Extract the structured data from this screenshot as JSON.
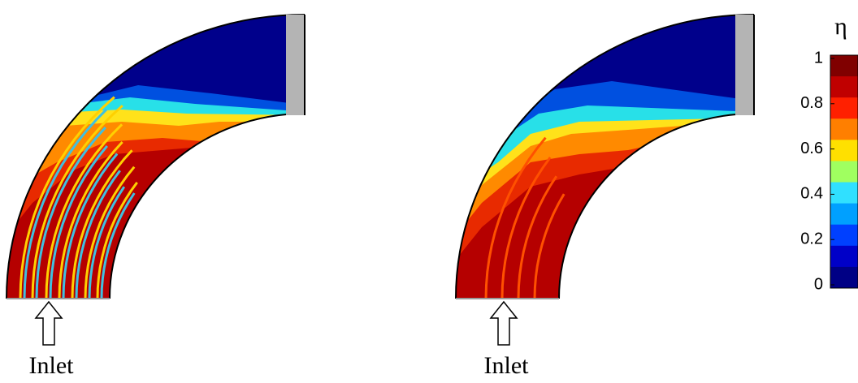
{
  "colorbar": {
    "title": "η",
    "ticks": [
      0,
      0.2,
      0.4,
      0.6,
      0.8,
      1
    ]
  },
  "panels": [
    {
      "label": "Inlet"
    },
    {
      "label": "Inlet"
    }
  ]
}
